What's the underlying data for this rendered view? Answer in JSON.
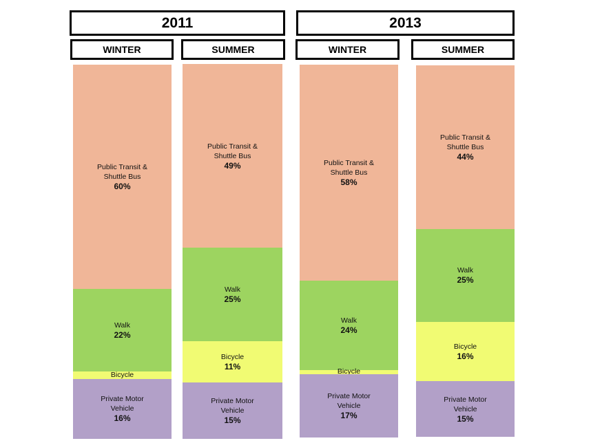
{
  "years": [
    "2011",
    "2013"
  ],
  "seasons": [
    "WINTER",
    "SUMMER",
    "WINTER",
    "SUMMER"
  ],
  "colors": {
    "public_transit": "#f0b698",
    "walk": "#9dd460",
    "bicycle": "#f1fb73",
    "private_motor": "#b2a0c8"
  },
  "chart_data": {
    "type": "bar",
    "stacked": true,
    "normalized": true,
    "groups": [
      {
        "year": "2011",
        "season": "WINTER",
        "segments": [
          {
            "label": "Public Transit &\nShuttle Bus",
            "value": 60,
            "value_label": "60%",
            "key": "public_transit"
          },
          {
            "label": "Walk",
            "value": 22,
            "value_label": "22%",
            "key": "walk"
          },
          {
            "label": "Bicycle",
            "value": 2,
            "value_label": "2%",
            "key": "bicycle"
          },
          {
            "label": "Private Motor\nVehicle",
            "value": 16,
            "value_label": "16%",
            "key": "private_motor"
          }
        ]
      },
      {
        "year": "2011",
        "season": "SUMMER",
        "segments": [
          {
            "label": "Public Transit &\nShuttle Bus",
            "value": 49,
            "value_label": "49%",
            "key": "public_transit"
          },
          {
            "label": "Walk",
            "value": 25,
            "value_label": "25%",
            "key": "walk"
          },
          {
            "label": "Bicycle",
            "value": 11,
            "value_label": "11%",
            "key": "bicycle"
          },
          {
            "label": "Private Motor\nVehicle",
            "value": 15,
            "value_label": "15%",
            "key": "private_motor"
          }
        ]
      },
      {
        "year": "2013",
        "season": "WINTER",
        "segments": [
          {
            "label": "Public Transit &\nShuttle Bus",
            "value": 58,
            "value_label": "58%",
            "key": "public_transit"
          },
          {
            "label": "Walk",
            "value": 24,
            "value_label": "24%",
            "key": "walk"
          },
          {
            "label": "Bicycle",
            "value": 1,
            "value_label": "1%",
            "key": "bicycle"
          },
          {
            "label": "Private Motor\nVehicle",
            "value": 17,
            "value_label": "17%",
            "key": "private_motor"
          }
        ]
      },
      {
        "year": "2013",
        "season": "SUMMER",
        "segments": [
          {
            "label": "Public Transit &\nShuttle Bus",
            "value": 44,
            "value_label": "44%",
            "key": "public_transit"
          },
          {
            "label": "Walk",
            "value": 25,
            "value_label": "25%",
            "key": "walk"
          },
          {
            "label": "Bicycle",
            "value": 16,
            "value_label": "16%",
            "key": "bicycle"
          },
          {
            "label": "Private Motor\nVehicle",
            "value": 15,
            "value_label": "15%",
            "key": "private_motor"
          }
        ]
      }
    ]
  }
}
